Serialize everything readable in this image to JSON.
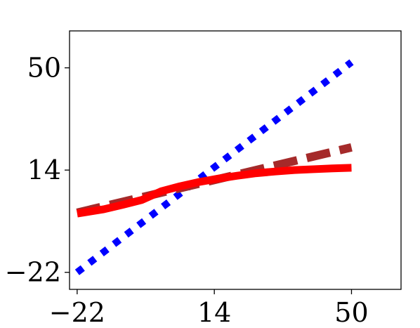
{
  "chart_data": {
    "type": "line",
    "title": "",
    "xlabel": "",
    "ylabel": "",
    "xlim": [
      -24,
      63
    ],
    "ylim": [
      -28,
      63
    ],
    "x_ticks": [
      {
        "value": -22,
        "label": "−22"
      },
      {
        "value": 14,
        "label": "14"
      },
      {
        "value": 50,
        "label": "50"
      }
    ],
    "y_ticks": [
      {
        "value": -22,
        "label": "−22"
      },
      {
        "value": 14,
        "label": "14"
      },
      {
        "value": 50,
        "label": "50"
      }
    ],
    "grid": false,
    "legend": false,
    "series": [
      {
        "color": "#0000ff",
        "line_style": "dotted",
        "x": [
          -22,
          50
        ],
        "y": [
          -22,
          52
        ]
      },
      {
        "color": "#a52a2a",
        "line_style": "dashed",
        "x": [
          -22,
          50
        ],
        "y": [
          -1,
          22
        ]
      },
      {
        "color": "#ff0000",
        "line_style": "solid",
        "x": [
          -22,
          -15,
          -10,
          -5,
          0,
          5,
          10,
          15,
          20,
          25,
          30,
          35,
          40,
          45,
          50
        ],
        "y": [
          -1.3,
          0.2,
          1.8,
          3.5,
          6.5,
          8.3,
          9.8,
          11.0,
          12.0,
          12.9,
          13.5,
          14.0,
          14.3,
          14.6,
          14.8
        ]
      }
    ]
  }
}
